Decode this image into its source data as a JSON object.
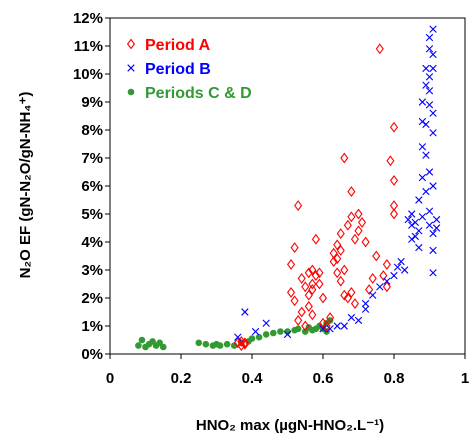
{
  "chart_data": {
    "type": "scatter",
    "xlabel": "HNO₂ max (µgN-HNO₂.L⁻¹)",
    "ylabel": "N₂O EF (gN-N₂O/gN-NH₄⁺)",
    "xlim": [
      0,
      1
    ],
    "ylim": [
      0,
      12
    ],
    "x_ticks": [
      "0",
      "0.2",
      "0.4",
      "0.6",
      "0.8",
      "1"
    ],
    "y_ticks": [
      "0%",
      "1%",
      "2%",
      "3%",
      "4%",
      "5%",
      "6%",
      "7%",
      "8%",
      "9%",
      "10%",
      "11%",
      "12%"
    ],
    "legend_position": "top-left",
    "grid": false,
    "series": [
      {
        "name": "Period A",
        "marker": "diamond-open",
        "color": "#ff0000",
        "points": [
          [
            0.36,
            0.4
          ],
          [
            0.37,
            0.3
          ],
          [
            0.38,
            0.4
          ],
          [
            0.37,
            0.45
          ],
          [
            0.38,
            0.35
          ],
          [
            0.51,
            2.2
          ],
          [
            0.51,
            3.2
          ],
          [
            0.52,
            3.8
          ],
          [
            0.52,
            1.9
          ],
          [
            0.53,
            5.3
          ],
          [
            0.53,
            1.2
          ],
          [
            0.54,
            1.5
          ],
          [
            0.54,
            2.7
          ],
          [
            0.55,
            2.4
          ],
          [
            0.55,
            1.0
          ],
          [
            0.56,
            2.1
          ],
          [
            0.56,
            2.9
          ],
          [
            0.56,
            1.7
          ],
          [
            0.57,
            2.3
          ],
          [
            0.57,
            3.0
          ],
          [
            0.57,
            1.4
          ],
          [
            0.57,
            2.5
          ],
          [
            0.58,
            2.8
          ],
          [
            0.58,
            4.1
          ],
          [
            0.59,
            2.9
          ],
          [
            0.59,
            2.5
          ],
          [
            0.6,
            2.0
          ],
          [
            0.6,
            1.1
          ],
          [
            0.61,
            1.0
          ],
          [
            0.62,
            1.3
          ],
          [
            0.63,
            3.3
          ],
          [
            0.63,
            3.6
          ],
          [
            0.64,
            2.9
          ],
          [
            0.64,
            3.9
          ],
          [
            0.64,
            3.4
          ],
          [
            0.65,
            2.6
          ],
          [
            0.65,
            4.3
          ],
          [
            0.65,
            3.7
          ],
          [
            0.66,
            2.1
          ],
          [
            0.66,
            7.0
          ],
          [
            0.66,
            3.0
          ],
          [
            0.67,
            4.6
          ],
          [
            0.67,
            2.0
          ],
          [
            0.68,
            4.9
          ],
          [
            0.68,
            5.8
          ],
          [
            0.68,
            2.2
          ],
          [
            0.69,
            4.1
          ],
          [
            0.69,
            1.8
          ],
          [
            0.7,
            5.0
          ],
          [
            0.7,
            4.4
          ],
          [
            0.71,
            4.7
          ],
          [
            0.72,
            4.0
          ],
          [
            0.73,
            2.3
          ],
          [
            0.74,
            2.7
          ],
          [
            0.75,
            3.5
          ],
          [
            0.76,
            10.9
          ],
          [
            0.77,
            2.8
          ],
          [
            0.78,
            2.4
          ],
          [
            0.78,
            3.2
          ],
          [
            0.79,
            6.9
          ],
          [
            0.8,
            8.1
          ],
          [
            0.8,
            5.3
          ],
          [
            0.8,
            5.0
          ],
          [
            0.8,
            6.2
          ]
        ]
      },
      {
        "name": "Period B",
        "marker": "x",
        "color": "#0000ff",
        "points": [
          [
            0.36,
            0.6
          ],
          [
            0.38,
            1.5
          ],
          [
            0.41,
            0.8
          ],
          [
            0.44,
            1.1
          ],
          [
            0.5,
            0.7
          ],
          [
            0.6,
            0.9
          ],
          [
            0.62,
            0.9
          ],
          [
            0.64,
            1.0
          ],
          [
            0.66,
            1.0
          ],
          [
            0.68,
            1.3
          ],
          [
            0.7,
            1.2
          ],
          [
            0.72,
            1.6
          ],
          [
            0.72,
            1.8
          ],
          [
            0.74,
            2.1
          ],
          [
            0.76,
            2.4
          ],
          [
            0.78,
            2.6
          ],
          [
            0.8,
            2.8
          ],
          [
            0.81,
            3.1
          ],
          [
            0.82,
            3.3
          ],
          [
            0.83,
            3.0
          ],
          [
            0.84,
            4.8
          ],
          [
            0.85,
            4.6
          ],
          [
            0.85,
            4.1
          ],
          [
            0.85,
            5.0
          ],
          [
            0.86,
            4.2
          ],
          [
            0.86,
            4.7
          ],
          [
            0.87,
            4.4
          ],
          [
            0.87,
            3.8
          ],
          [
            0.87,
            5.5
          ],
          [
            0.88,
            7.4
          ],
          [
            0.88,
            6.3
          ],
          [
            0.88,
            4.9
          ],
          [
            0.88,
            8.3
          ],
          [
            0.88,
            9.0
          ],
          [
            0.89,
            8.2
          ],
          [
            0.89,
            9.6
          ],
          [
            0.89,
            10.2
          ],
          [
            0.89,
            7.1
          ],
          [
            0.89,
            5.8
          ],
          [
            0.9,
            9.4
          ],
          [
            0.9,
            10.9
          ],
          [
            0.9,
            11.3
          ],
          [
            0.9,
            9.9
          ],
          [
            0.9,
            8.9
          ],
          [
            0.9,
            6.5
          ],
          [
            0.9,
            5.1
          ],
          [
            0.9,
            4.6
          ],
          [
            0.91,
            11.6
          ],
          [
            0.91,
            10.7
          ],
          [
            0.91,
            10.2
          ],
          [
            0.91,
            8.6
          ],
          [
            0.91,
            7.9
          ],
          [
            0.91,
            6.0
          ],
          [
            0.91,
            4.3
          ],
          [
            0.91,
            3.7
          ],
          [
            0.91,
            2.9
          ],
          [
            0.92,
            4.8
          ],
          [
            0.92,
            4.5
          ]
        ]
      },
      {
        "name": "Periods C & D",
        "marker": "circle-filled",
        "color": "#339933",
        "points": [
          [
            0.08,
            0.3
          ],
          [
            0.09,
            0.5
          ],
          [
            0.1,
            0.25
          ],
          [
            0.11,
            0.35
          ],
          [
            0.12,
            0.45
          ],
          [
            0.13,
            0.3
          ],
          [
            0.14,
            0.4
          ],
          [
            0.15,
            0.25
          ],
          [
            0.25,
            0.4
          ],
          [
            0.27,
            0.35
          ],
          [
            0.29,
            0.3
          ],
          [
            0.3,
            0.35
          ],
          [
            0.31,
            0.3
          ],
          [
            0.33,
            0.35
          ],
          [
            0.35,
            0.3
          ],
          [
            0.37,
            0.4
          ],
          [
            0.39,
            0.45
          ],
          [
            0.4,
            0.55
          ],
          [
            0.42,
            0.6
          ],
          [
            0.44,
            0.7
          ],
          [
            0.46,
            0.75
          ],
          [
            0.48,
            0.8
          ],
          [
            0.5,
            0.8
          ],
          [
            0.52,
            0.85
          ],
          [
            0.53,
            0.9
          ],
          [
            0.55,
            0.8
          ],
          [
            0.56,
            0.95
          ],
          [
            0.57,
            0.85
          ],
          [
            0.58,
            0.9
          ],
          [
            0.59,
            1.0
          ],
          [
            0.6,
            0.9
          ],
          [
            0.61,
            1.1
          ],
          [
            0.61,
            0.8
          ],
          [
            0.62,
            1.2
          ]
        ]
      }
    ]
  }
}
